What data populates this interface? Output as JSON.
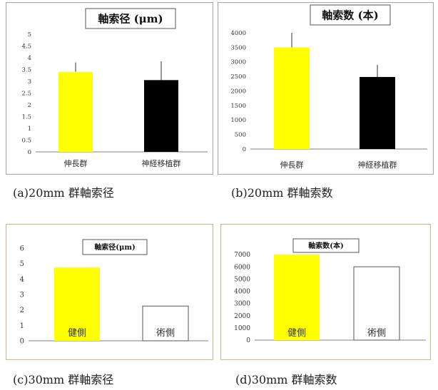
{
  "colors": {
    "yellow": "#ffff00",
    "black": "#000000",
    "white": "#ffffff",
    "frame_top": "#a9a9a9",
    "frame_bottom": "#c9b98a",
    "axis": "#808080",
    "text": "#333333"
  },
  "captions": [
    "(a)20mm 群軸索径",
    "(b)20mm 群軸索数",
    "(c)30mm 群軸索径",
    "(d)30mm 群軸索数"
  ],
  "chart_data": [
    {
      "type": "bar",
      "title": "軸索径 (μm)",
      "categories": [
        "伸長群",
        "神経移植群"
      ],
      "values": [
        3.4,
        3.05
      ],
      "errors": [
        0.4,
        0.8
      ],
      "bar_colors": [
        "#ffff00",
        "#000000"
      ],
      "ylim": [
        0,
        5
      ],
      "yticks": [
        0,
        0.5,
        1,
        1.5,
        2,
        2.5,
        3,
        3.5,
        4,
        4.5,
        5
      ],
      "ytick_labels": [
        "0",
        "0.5",
        "1",
        "1.5",
        "2",
        "2.5",
        "3",
        "3.5",
        "4",
        "4.5",
        "5"
      ],
      "xlabel": "",
      "ylabel": "",
      "grid": false
    },
    {
      "type": "bar",
      "title": "軸索数 (本)",
      "categories": [
        "伸長群",
        "神経移植群"
      ],
      "values": [
        3500,
        2480
      ],
      "errors": [
        500,
        420
      ],
      "bar_colors": [
        "#ffff00",
        "#000000"
      ],
      "ylim": [
        0,
        4000
      ],
      "yticks": [
        0,
        500,
        1000,
        1500,
        2000,
        2500,
        3000,
        3500,
        4000
      ],
      "ytick_labels": [
        "0",
        "500",
        "1000",
        "1500",
        "2000",
        "2500",
        "3000",
        "3500",
        "4000"
      ],
      "xlabel": "",
      "ylabel": "",
      "grid": false
    },
    {
      "type": "bar",
      "title": "軸索径(μm)",
      "categories": [
        "健側",
        "術側"
      ],
      "values": [
        4.75,
        2.25
      ],
      "bar_colors": [
        "#ffff00",
        "#ffffff"
      ],
      "ylim": [
        0,
        6
      ],
      "yticks": [
        0,
        1,
        2,
        3,
        4,
        5,
        6
      ],
      "ytick_labels": [
        "0",
        "1",
        "2",
        "3",
        "4",
        "5",
        "6"
      ],
      "xlabel": "",
      "ylabel": "",
      "grid": false
    },
    {
      "type": "bar",
      "title": "軸索数(本)",
      "categories": [
        "健側",
        "術側"
      ],
      "values": [
        7000,
        6000
      ],
      "bar_colors": [
        "#ffff00",
        "#ffffff"
      ],
      "ylim": [
        0,
        7000
      ],
      "yticks": [
        0,
        1000,
        2000,
        3000,
        4000,
        5000,
        6000,
        7000
      ],
      "ytick_labels": [
        "0",
        "1000",
        "2000",
        "3000",
        "4000",
        "5000",
        "6000",
        "7000"
      ],
      "xlabel": "",
      "ylabel": "",
      "grid": false
    }
  ]
}
